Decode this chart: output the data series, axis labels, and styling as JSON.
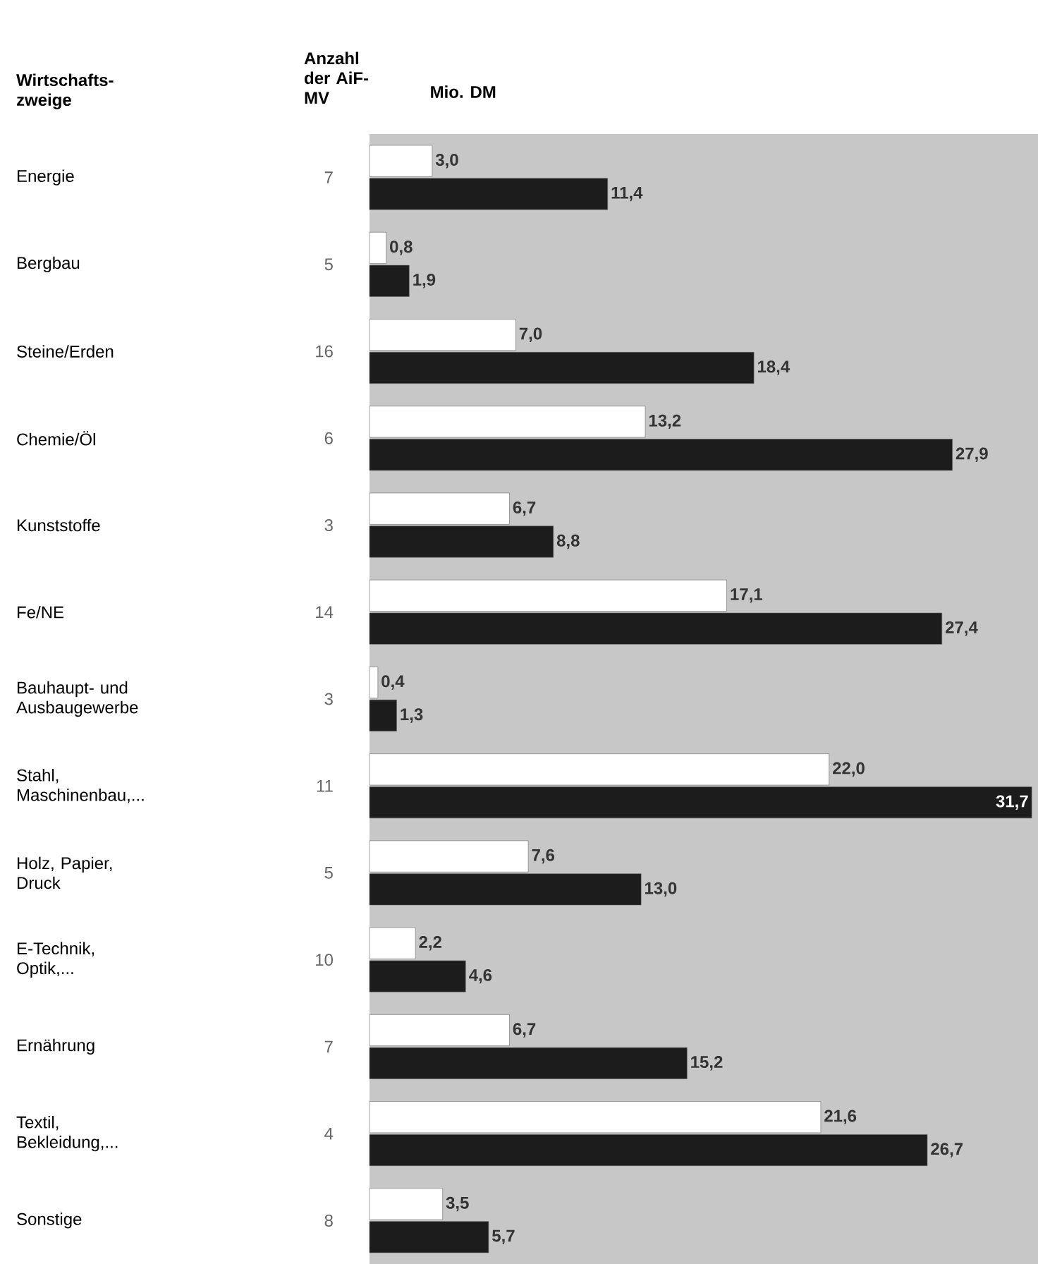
{
  "chart_data": {
    "type": "bar",
    "orientation": "horizontal",
    "ylabel": "Wirtschafts- zweige",
    "xlabel": "Mio. DM",
    "categories": [
      "Energie",
      "Bergbau",
      "Steine/Erden",
      "Chemie/Öl",
      "Kunststoffe",
      "Fe/NE",
      "Bauhaupt- und Ausbaugewerbe",
      "Stahl, Maschinenbau,...",
      "Holz, Papier, Druck",
      "E-Technik, Optik,...",
      "Ernährung",
      "Textil, Bekleidung,...",
      "Sonstige"
    ],
    "series": [
      {
        "color": "#ffffff",
        "values": [
          3.0,
          0.8,
          7.0,
          13.2,
          6.7,
          17.1,
          0.4,
          22.0,
          7.6,
          2.2,
          6.7,
          21.6,
          3.5
        ],
        "value_labels": [
          "3,0",
          "0,8",
          "7,0",
          "13,2",
          "6,7",
          "17,1",
          "0,4",
          "22,0",
          "7,6",
          "2,2",
          "6,7",
          "21,6",
          "3,5"
        ]
      },
      {
        "color": "#1c1c1c",
        "values": [
          11.4,
          1.9,
          18.4,
          27.9,
          8.8,
          27.4,
          1.3,
          31.7,
          13.0,
          4.6,
          15.2,
          26.7,
          5.7
        ],
        "value_labels": [
          "11,4",
          "1,9",
          "18,4",
          "27,9",
          "8,8",
          "27,4",
          "1,3",
          "31,7",
          "13,0",
          "4,6",
          "15,2",
          "26,7",
          "5,7"
        ]
      }
    ],
    "annotations": [
      "Anzahl der AiF-MV",
      "7",
      "5",
      "16",
      "6",
      "3",
      "14",
      "3",
      "11",
      "5",
      "10",
      "7",
      "4",
      "8"
    ],
    "xlim": [
      0,
      32
    ],
    "tick_labels": false
  }
}
